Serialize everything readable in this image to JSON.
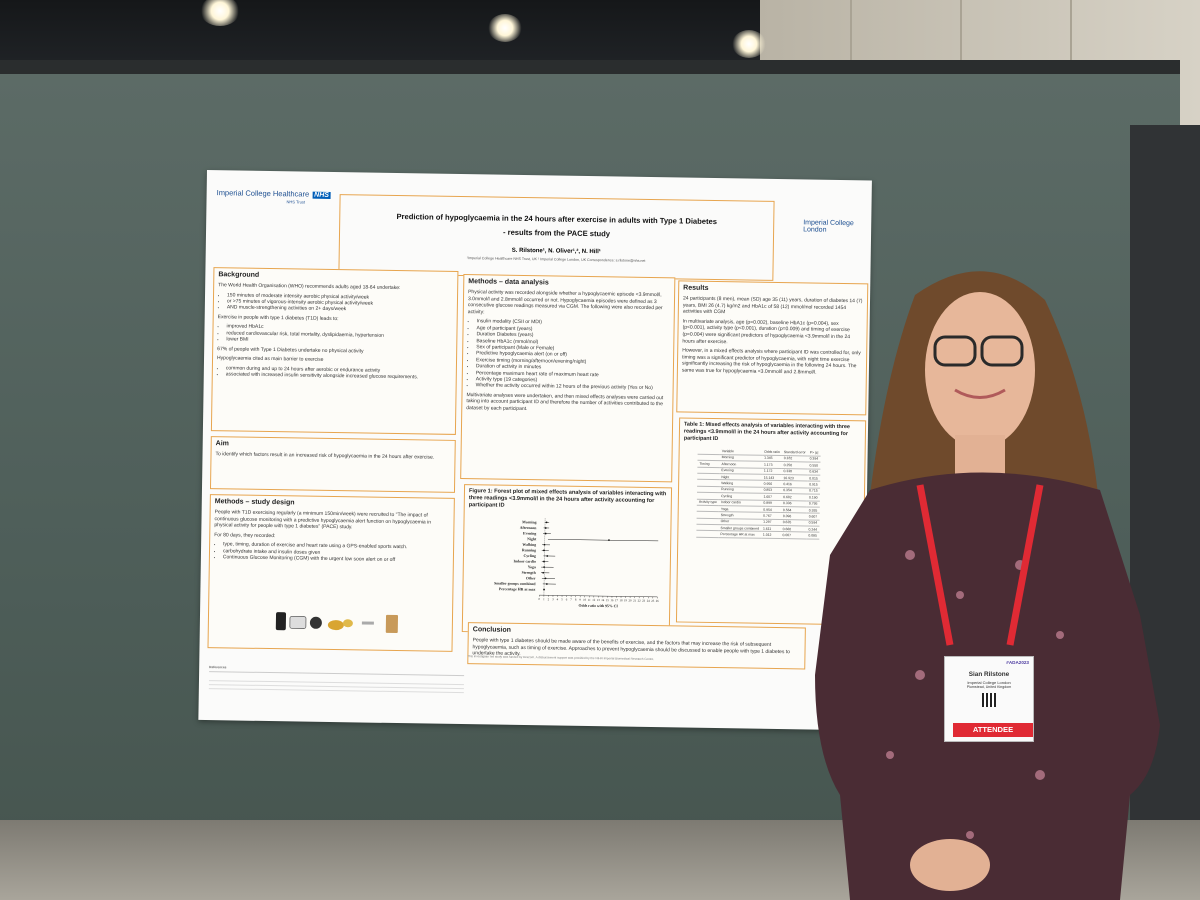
{
  "poster": {
    "logo_left": "Imperial College Healthcare",
    "logo_nhs": "NHS",
    "logo_trust": "NHS Trust",
    "logo_right_line1": "Imperial College",
    "logo_right_line2": "London",
    "title_line1": "Prediction of hypoglycaemia in the 24 hours after exercise in adults with Type 1 Diabetes",
    "title_line2": "- results from the PACE study",
    "authors": "S. Rilstone¹, N. Oliver¹,², N. Hill¹",
    "affiliations": "¹Imperial College Healthcare NHS Trust, UK  ² Imperial College London, UK  Correspondence: s.rilstone@nhs.net"
  },
  "background": {
    "heading": "Background",
    "intro": "The World Health Organisation (WHO) recommends adults aged 18-64 undertake:",
    "who_items": [
      "150 minutes of moderate intensity aerobic physical activity/week",
      "or >75 minutes of vigorous-intensity aerobic physical activity/week",
      "AND muscle-strengthening activities on 2+ days/week"
    ],
    "t1d_intro": "Exercise in people with type 1 diabetes (T1D) leads to:",
    "t1d_items": [
      "improved HbA1c",
      "reduced cardiovascular risk, total mortality, dyslipidaemia, hypertension",
      "lower BMI"
    ],
    "stat": "67% of people with Type 1 Diabetes undertake no physical activity",
    "hypo_intro": "Hypoglycaemia cited as main barrier to exercise",
    "hypo_items": [
      "common during and up to 24 hours after aerobic or endurance activity",
      "associated with increased insulin sensitivity alongside increased glucose requirements."
    ]
  },
  "aim": {
    "heading": "Aim",
    "text": "To identify which factors result in an increased risk of hypoglycaemia in the 24 hours after exercise."
  },
  "design": {
    "heading": "Methods – study design",
    "text": "People with T1D exercising regularly (a minimum 150min/week) were recruited to \"The impact of continuous glucose monitoring with a predictive hypoglycaemia alert function on hypoglycaemia in physical activity for people with type 1 diabetes\" (PACE) study.",
    "days_intro": "For 80 days, they recorded:",
    "items": [
      "type, timing, duration of exercise and heart rate using a GPS-enabled sports watch.",
      "carbohydrate intake and insulin doses given",
      "Continuous Glucose Monitoring (CGM) with the urgent low soon alert on or off"
    ]
  },
  "analysis": {
    "heading": "Methods – data analysis",
    "text": "Physical activity was recorded alongside whether a hypoglycaemic episode <3.9mmol/l, 3.0mmol/l and 2.8mmol/l occurred or not. Hypoglycaemia episodes were defined as 3 consecutive glucose readings measured via CGM. The following were also recorded per activity:",
    "items": [
      "Insulin modality (CSII or MDI)",
      "Age of participant (years)",
      "Duration Diabetes (years)",
      "Baseline HbA1c (mmol/mol)",
      "Sex of participant (Male or Female)",
      "Predictive hypoglycaemia alert (on or off)",
      "Exercise timing (morning/afternoon/evening/night)",
      "Duration of activity in minutes",
      "Percentage maximum heart rate of maximum heart rate",
      "Activity type (19 categories)",
      "Whether the activity occurred within 12 hours of the previous activity (Yes or No)"
    ],
    "text2": "Multivariate analyses were undertaken, and then mixed effects analyses were carried out taking into account participant ID and therefore the number of activities contributed to the dataset by each participant."
  },
  "results": {
    "heading": "Results",
    "p1": "24 participants (8 men), mean (SD) age 35 (11) years, duration of diabetes 14 (7) years, BMI 26 (4.7) kg/m2 and HbA1c of 58 (12) mmol/mol recorded 1454 activities with CGM",
    "p2": "In multivariate analysis, age (p=0.002), baseline HbA1c (p=0.004), sex (p<0.001), activity type (p<0.001), duration (p=0.009) and timing of exercise (p=0.004) were significant predictors of hypoglycaemia <3.9mmol/l in the 24 hours after exercise.",
    "p3": "However, in a mixed effects analysis where participant ID was controlled for, only timing was a significant predictor of hypoglycaemia, with night time exercise significantly increasing the risk of hypoglycaemia in the following 24 hours. The same was true for hypoglycaemia <3.0mmol/l and 2.8mmol/l."
  },
  "table": {
    "heading": "Table 1: Mixed effects analysis of variables interacting with three readings <3.9mmol/l in the 24 hours after activity accounting for participant ID",
    "cols": [
      "Variable",
      "Odds ratio",
      "Standard error",
      "P> |z|"
    ],
    "timing_label": "Timing",
    "activity_label": "Activity type",
    "rows": [
      [
        "Morning",
        "1.345",
        "0.182",
        "0.394"
      ],
      [
        "Afternoon",
        "1.173",
        "0.250",
        "0.550"
      ],
      [
        "Evening",
        "1.172",
        "0.338",
        "0.634"
      ],
      [
        "Night",
        "15.143",
        "16.923",
        "0.015"
      ],
      [
        "Walking",
        "0.956",
        "0.416",
        "0.915"
      ],
      [
        "Running",
        "0.853",
        "0.354",
        "0.715"
      ],
      [
        "Cycling",
        "1.607",
        "0.602",
        "0.190"
      ],
      [
        "Indoor cardio",
        "0.899",
        "0.336",
        "0.795"
      ],
      [
        "Yoga",
        "0.954",
        "0.564",
        "0.935"
      ],
      [
        "Strength",
        "0.767",
        "0.396",
        "0.607"
      ],
      [
        "Other",
        "1.297",
        "0.635",
        "0.594"
      ],
      [
        "Smaller groups combined",
        "1.611",
        "0.660",
        "0.244"
      ],
      [
        "Percentage HR at max",
        "1.012",
        "0.007",
        "0.085"
      ]
    ]
  },
  "figure": {
    "heading": "Figure 1: Forest plot of mixed effects analysis of variables interacting with three readings <3.9mmol/l in the 24 hours after activity accounting for participant ID",
    "xlabel": "Odds ratio with 95% CI"
  },
  "chart_data": {
    "type": "scatter",
    "title": "",
    "xlabel": "Odds ratio with 95% CI",
    "ylabel": "",
    "categories": [
      "Morning",
      "Afternoon",
      "Evening",
      "Night",
      "Walking",
      "Running",
      "Cycling",
      "Indoor cardio",
      "Yoga",
      "Strength",
      "Other",
      "Smaller groups combined",
      "Percentage HR at max"
    ],
    "values": [
      1.345,
      1.173,
      1.172,
      15.143,
      0.956,
      0.853,
      1.607,
      0.899,
      0.954,
      0.767,
      1.297,
      1.611,
      1.012
    ],
    "ci_low": [
      0.95,
      0.71,
      0.59,
      1.7,
      0.42,
      0.38,
      0.77,
      0.43,
      0.3,
      0.28,
      0.5,
      0.72,
      0.99
    ],
    "ci_high": [
      1.9,
      1.92,
      2.32,
      26,
      2.17,
      1.92,
      3.35,
      1.87,
      3.04,
      2.11,
      3.38,
      3.6,
      1.03
    ],
    "xticks": [
      "0",
      "1",
      "2",
      "3",
      "4",
      "5",
      "6",
      "7",
      "8",
      "9",
      "10",
      "11",
      "12",
      "13",
      "14",
      "15",
      "16",
      "17",
      "18",
      "19",
      "20",
      "21",
      "22",
      "23",
      "24",
      "25",
      "26"
    ],
    "xlim": [
      0,
      26
    ]
  },
  "conclusion": {
    "heading": "Conclusion",
    "text": "People with type 1 diabetes should be made aware of the benefits of exercise, and the factors that may increase the risk of subsequent hypoglycaemia, such as timing of exercise. Approaches to prevent hypoglycaemia should be discussed to enable people with type 1 diabetes to undertake the activity."
  },
  "references_heading": "References",
  "footnote": "This investigator led study was funded by Dexcom. A disbursement support was provided by the NIHR Imperial Biomedical Research Centre.",
  "badge": {
    "event": "#ADA2023",
    "name": "Sian Rilstone",
    "org": "Imperial College London",
    "location": "Plumstead, United Kingdom",
    "role": "ATTENDEE"
  }
}
